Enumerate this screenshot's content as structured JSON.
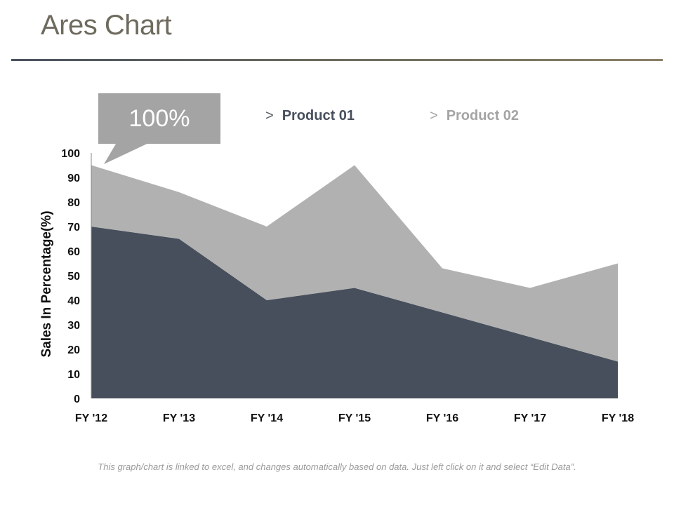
{
  "page": {
    "title": "Ares Chart"
  },
  "callout": {
    "text": "100%"
  },
  "legend": [
    {
      "arrow": ">",
      "label": "Product 01",
      "color": "#474f5c"
    },
    {
      "arrow": ">",
      "label": "Product 02",
      "color": "#a4a4a4"
    }
  ],
  "footer": {
    "note": "This graph/chart is linked to excel, and changes automatically based on data. Just left click on it and select “Edit Data”."
  },
  "chart_data": {
    "type": "area",
    "stacked": true,
    "categories": [
      "FY '12",
      "FY '13",
      "FY '14",
      "FY '15",
      "FY '16",
      "FY '17",
      "FY '18"
    ],
    "series": [
      {
        "name": "Product 01",
        "values": [
          70,
          65,
          40,
          45,
          35,
          25,
          15
        ],
        "color": "#474f5c"
      },
      {
        "name": "Product 02",
        "values": [
          25,
          19,
          30,
          50,
          18,
          20,
          40
        ],
        "color": "#b1b1b1"
      }
    ],
    "ylabel": "Sales In Percentage(%)",
    "ylim": [
      0,
      100
    ],
    "yticks": [
      0,
      10,
      20,
      30,
      40,
      50,
      60,
      70,
      80,
      90,
      100
    ],
    "grid": false,
    "legend_position": "top"
  }
}
